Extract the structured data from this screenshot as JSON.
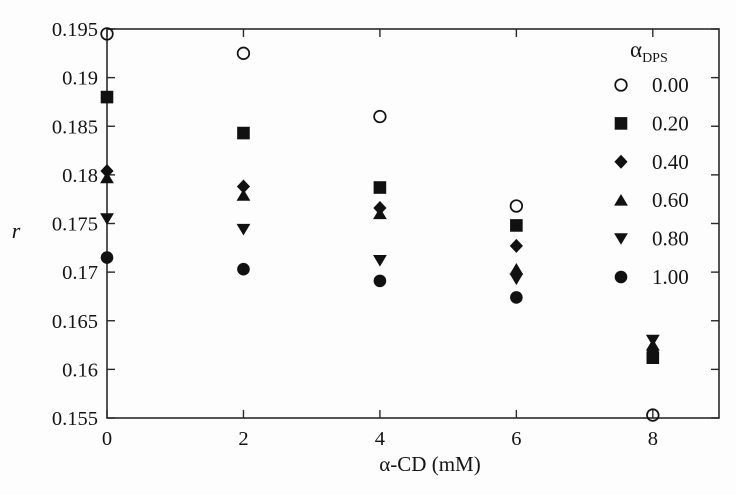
{
  "chart_data": {
    "type": "scatter",
    "title": "",
    "xlabel": "α-CD (mM)",
    "ylabel": "r",
    "xlim": [
      0,
      8.97
    ],
    "ylim": [
      0.155,
      0.195
    ],
    "x_tick_values": [
      0,
      2,
      4,
      6,
      8
    ],
    "x_tick_labels": [
      "0",
      "2",
      "4",
      "6",
      "8"
    ],
    "y_tick_values": [
      0.155,
      0.16,
      0.165,
      0.17,
      0.175,
      0.18,
      0.185,
      0.19,
      0.195
    ],
    "y_tick_labels": [
      "0.155",
      "0.16",
      "0.165",
      "0.17",
      "0.175",
      "0.18",
      "0.185",
      "0.19",
      "0.195"
    ],
    "grid": false,
    "frame": "box-with-mirrored-ticks",
    "legend": {
      "position": "top-right",
      "title_main": "α",
      "title_sub": "DPS"
    },
    "colors": {
      "marker": "#111111",
      "axis": "#2a2a2a",
      "text": "#141414",
      "background": "#fdfdfd"
    },
    "series": [
      {
        "name": "0.00",
        "marker": "circle-open",
        "points": [
          [
            0,
            0.1945
          ],
          [
            2,
            0.1925
          ],
          [
            4,
            0.186
          ],
          [
            6,
            0.1768
          ],
          [
            8,
            0.1553
          ]
        ]
      },
      {
        "name": "0.20",
        "marker": "square",
        "points": [
          [
            0,
            0.188
          ],
          [
            2,
            0.1843
          ],
          [
            4,
            0.1787
          ],
          [
            6,
            0.1748
          ],
          [
            8,
            0.1612
          ]
        ]
      },
      {
        "name": "0.40",
        "marker": "diamond",
        "points": [
          [
            0,
            0.1804
          ],
          [
            2,
            0.1788
          ],
          [
            4,
            0.1766
          ],
          [
            6,
            0.1727
          ],
          [
            8,
            0.162
          ]
        ]
      },
      {
        "name": "0.60",
        "marker": "triangle-up",
        "points": [
          [
            0,
            0.1797
          ],
          [
            2,
            0.1779
          ],
          [
            4,
            0.176
          ],
          [
            6,
            0.1703
          ],
          [
            8,
            0.1625
          ]
        ]
      },
      {
        "name": "0.80",
        "marker": "triangle-down",
        "points": [
          [
            0,
            0.1755
          ],
          [
            2,
            0.1744
          ],
          [
            4,
            0.1712
          ],
          [
            6,
            0.1693
          ],
          [
            8,
            0.163
          ]
        ]
      },
      {
        "name": "1.00",
        "marker": "circle-filled",
        "points": [
          [
            0,
            0.1715
          ],
          [
            2,
            0.1703
          ],
          [
            4,
            0.1691
          ],
          [
            6,
            0.1674
          ],
          [
            8,
            0.1616
          ]
        ]
      }
    ]
  }
}
